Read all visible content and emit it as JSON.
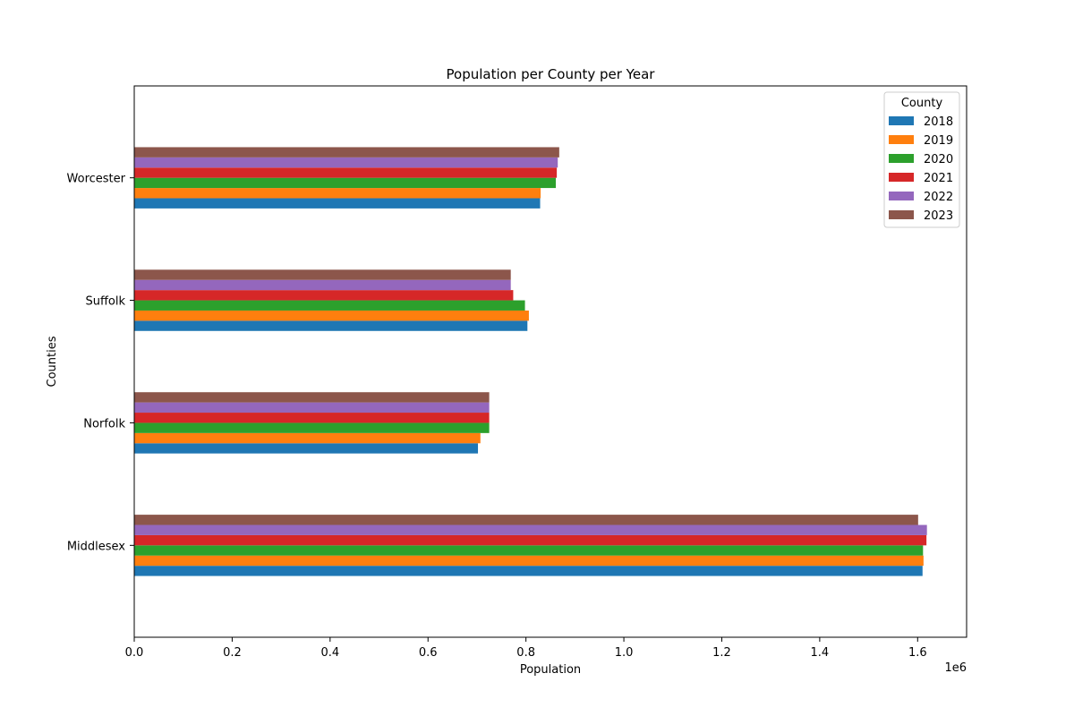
{
  "chart_data": {
    "type": "bar",
    "orientation": "horizontal",
    "title": "Population per County per Year",
    "xlabel": "Population",
    "ylabel": "Counties",
    "x_offset_label": "1e6",
    "xlim": [
      0,
      1700000
    ],
    "x_ticks": [
      0,
      200000,
      400000,
      600000,
      800000,
      1000000,
      1200000,
      1400000,
      1600000
    ],
    "x_tick_labels": [
      "0.0",
      "0.2",
      "0.4",
      "0.6",
      "0.8",
      "1.0",
      "1.2",
      "1.4",
      "1.6"
    ],
    "categories": [
      "Middlesex",
      "Norfolk",
      "Suffolk",
      "Worcester"
    ],
    "legend": {
      "title": "County",
      "position": "top-right"
    },
    "grid": false,
    "series": [
      {
        "name": "2018",
        "color": "#1f77b4",
        "values": [
          1610000,
          702000,
          803000,
          829000
        ]
      },
      {
        "name": "2019",
        "color": "#ff7f0e",
        "values": [
          1612000,
          707000,
          806000,
          830000
        ]
      },
      {
        "name": "2020",
        "color": "#2ca02c",
        "values": [
          1611000,
          725000,
          798000,
          861000
        ]
      },
      {
        "name": "2021",
        "color": "#d62728",
        "values": [
          1618000,
          725000,
          774000,
          863000
        ]
      },
      {
        "name": "2022",
        "color": "#9467bd",
        "values": [
          1619000,
          725000,
          769000,
          865000
        ]
      },
      {
        "name": "2023",
        "color": "#8c564b",
        "values": [
          1601000,
          725000,
          769000,
          868000
        ]
      }
    ]
  }
}
